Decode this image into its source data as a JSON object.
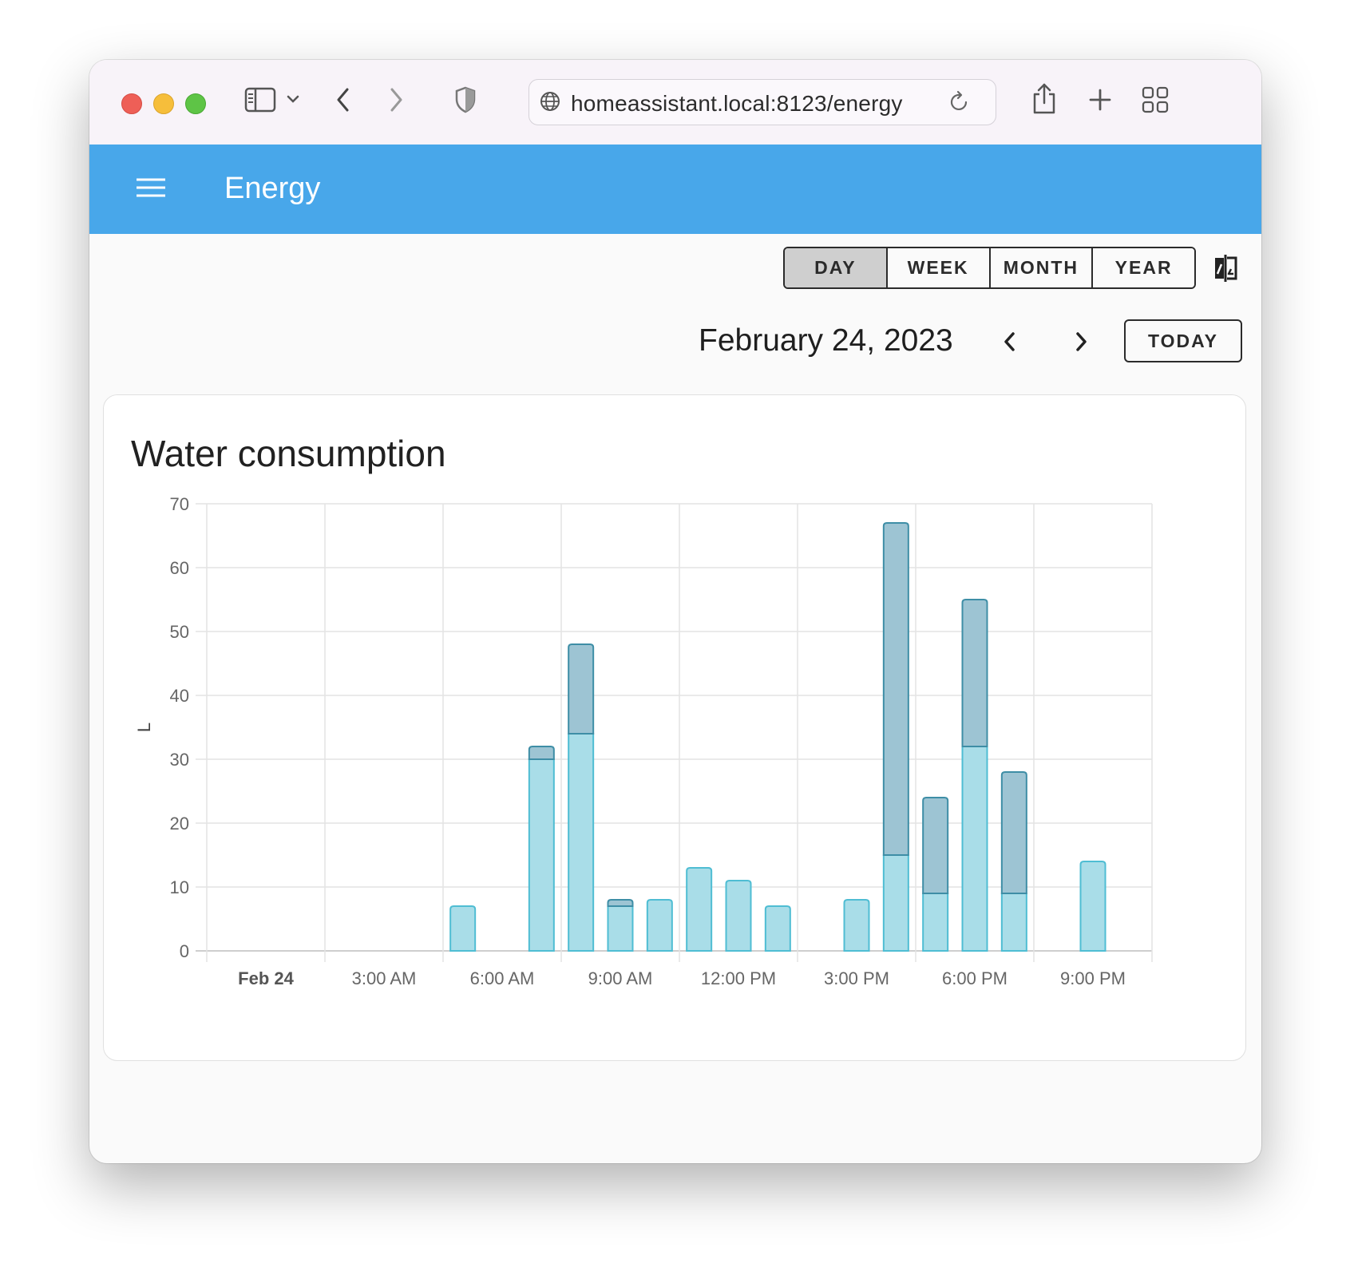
{
  "browser": {
    "url": "homeassistant.local:8123/energy"
  },
  "app": {
    "title": "Energy"
  },
  "period": {
    "options": [
      "DAY",
      "WEEK",
      "MONTH",
      "YEAR"
    ],
    "selected": "DAY"
  },
  "date_nav": {
    "date": "February 24, 2023",
    "today_label": "TODAY"
  },
  "card": {
    "title": "Water consumption"
  },
  "colors": {
    "app_bar": "#48a7ea",
    "series_light": "#a9dde8",
    "series_light_border": "#4fbdd3",
    "series_dark": "#9dc4d3",
    "series_dark_border": "#3e8ea6"
  },
  "chart_data": {
    "type": "bar",
    "stacked": true,
    "title": "Water consumption",
    "ylabel": "L",
    "xlabel": "",
    "ylim": [
      0,
      70
    ],
    "yticks": [
      0,
      10,
      20,
      30,
      40,
      50,
      60,
      70
    ],
    "xtick_labels": [
      "Feb 24",
      "3:00 AM",
      "6:00 AM",
      "9:00 AM",
      "12:00 PM",
      "3:00 PM",
      "6:00 PM",
      "9:00 PM"
    ],
    "grid": true,
    "categories": [
      "12:00 AM",
      "1:00 AM",
      "2:00 AM",
      "3:00 AM",
      "4:00 AM",
      "5:00 AM",
      "6:00 AM",
      "7:00 AM",
      "8:00 AM",
      "9:00 AM",
      "10:00 AM",
      "11:00 AM",
      "12:00 PM",
      "1:00 PM",
      "2:00 PM",
      "3:00 PM",
      "4:00 PM",
      "5:00 PM",
      "6:00 PM",
      "7:00 PM",
      "8:00 PM",
      "9:00 PM",
      "10:00 PM",
      "11:00 PM"
    ],
    "series": [
      {
        "color": "#a9dde8",
        "values": [
          0,
          0,
          0,
          0,
          0,
          0,
          7,
          0,
          30,
          34,
          7,
          8,
          13,
          11,
          7,
          0,
          8,
          15,
          9,
          32,
          9,
          0,
          14,
          0
        ]
      },
      {
        "color": "#9dc4d3",
        "values": [
          0,
          0,
          0,
          0,
          0,
          0,
          0,
          0,
          2,
          14,
          1,
          0,
          0,
          0,
          0,
          0,
          0,
          52,
          15,
          23,
          19,
          0,
          0,
          0
        ]
      }
    ]
  }
}
